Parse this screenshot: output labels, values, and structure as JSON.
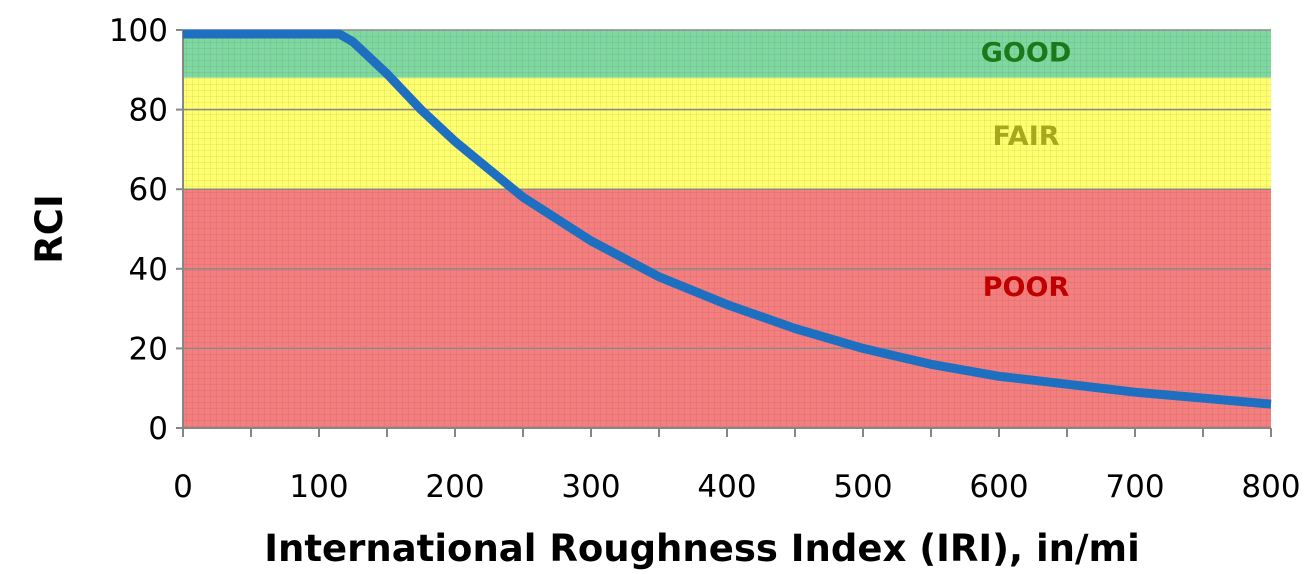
{
  "chart_data": {
    "type": "line",
    "title": "",
    "xlabel": "International Roughness Index (IRI), in/mi",
    "ylabel": "RCI",
    "xlim": [
      0,
      800
    ],
    "ylim": [
      0,
      100
    ],
    "xticks": [
      "0",
      "100",
      "200",
      "300",
      "400",
      "500",
      "600",
      "700",
      "800"
    ],
    "yticks": [
      "0",
      "20",
      "40",
      "60",
      "80",
      "100"
    ],
    "grid": true,
    "legend": "none",
    "bands": [
      {
        "label": "GOOD",
        "y_from": 88,
        "y_to": 100,
        "color": "#7fd8a0",
        "label_color": "#1a7a1a"
      },
      {
        "label": "FAIR",
        "y_from": 60,
        "y_to": 88,
        "color": "#ffff70",
        "label_color": "#a8a81e"
      },
      {
        "label": "POOR",
        "y_from": 0,
        "y_to": 60,
        "color": "#f57f7f",
        "label_color": "#c00000"
      }
    ],
    "series": [
      {
        "color": "#1f6fc1",
        "x": [
          0,
          50,
          100,
          115,
          125,
          150,
          175,
          200,
          225,
          250,
          300,
          350,
          400,
          450,
          500,
          550,
          600,
          650,
          700,
          750,
          800
        ],
        "y": [
          99,
          99,
          99,
          99,
          97,
          89,
          80,
          72,
          65,
          58,
          47,
          38,
          31,
          25,
          20,
          16,
          13,
          11,
          9,
          7.5,
          6
        ]
      }
    ]
  }
}
